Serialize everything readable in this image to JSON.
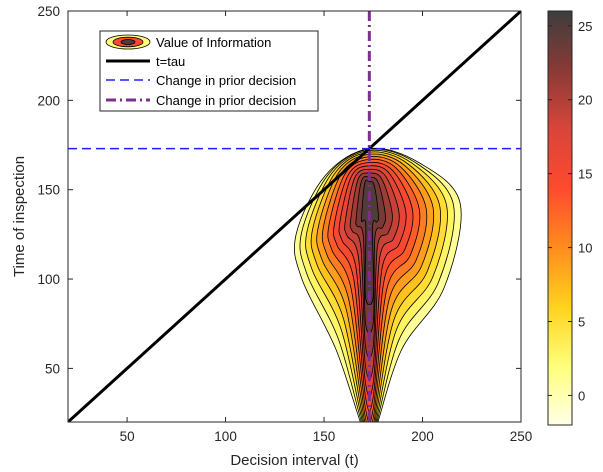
{
  "chart_data": {
    "type": "contour",
    "xlabel": "Decision interval (t)",
    "ylabel": "Time of inspection",
    "xlim": [
      20,
      250
    ],
    "ylim": [
      20,
      250
    ],
    "xticks": [
      50,
      100,
      150,
      200,
      250
    ],
    "yticks": [
      50,
      100,
      150,
      200,
      250
    ],
    "grid": false,
    "legend_position": "top-left",
    "legend": [
      {
        "label": "Value of Information",
        "style": "contour"
      },
      {
        "label": "t=tau",
        "style": "solid",
        "color": "#000000"
      },
      {
        "label": "Change in prior decision",
        "style": "dashed",
        "color": "#1f1fff"
      },
      {
        "label": "Change in prior decision",
        "style": "dashdot",
        "color": "#7e2f8e"
      }
    ],
    "series": [
      {
        "label_ref": 1,
        "points": [
          [
            20,
            20
          ],
          [
            250,
            250
          ]
        ]
      },
      {
        "label_ref": 2,
        "y": 173
      },
      {
        "label_ref": 3,
        "x": 173
      }
    ],
    "contour": {
      "peak": {
        "x": 173,
        "y": 135,
        "value": 26
      },
      "levels": [
        0,
        2,
        4,
        6,
        8,
        10,
        12,
        14,
        16,
        18,
        20,
        22,
        24
      ],
      "outer_extent": {
        "x": [
          137,
          218
        ],
        "y": [
          20,
          173
        ]
      }
    },
    "colorbar": {
      "range": [
        -2,
        26
      ],
      "ticks": [
        0,
        5,
        10,
        15,
        20,
        25
      ],
      "colormap": [
        "#ffffe8",
        "#ffff7a",
        "#ffd21e",
        "#ff8c1e",
        "#ff4a2e",
        "#d9453a",
        "#8a3a35",
        "#3d3d3d"
      ]
    }
  }
}
